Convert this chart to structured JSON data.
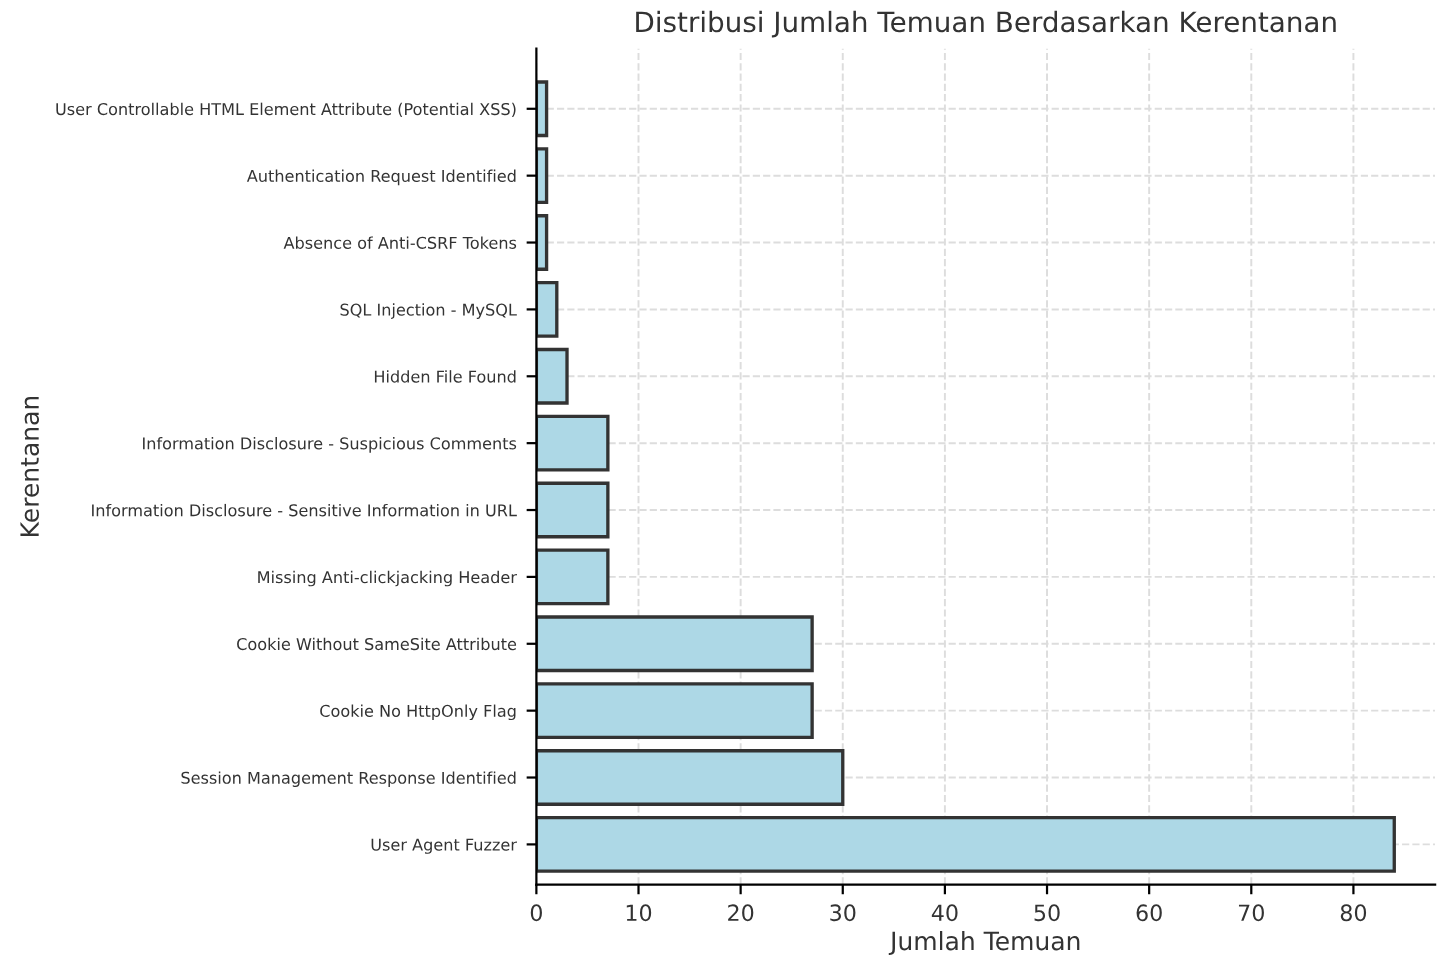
{
  "chart_data": {
    "type": "bar",
    "orientation": "horizontal",
    "title": "Distribusi Jumlah Temuan Berdasarkan Kerentanan",
    "xlabel": "Jumlah Temuan",
    "ylabel": "Kerentanan",
    "categories": [
      "User Controllable HTML Element Attribute (Potential XSS)",
      "Authentication Request Identified",
      "Absence of Anti-CSRF Tokens",
      "SQL Injection - MySQL",
      "Hidden File Found",
      "Information Disclosure - Suspicious Comments",
      "Information Disclosure - Sensitive Information in URL",
      "Missing Anti-clickjacking Header",
      "Cookie Without SameSite Attribute",
      "Cookie No HttpOnly Flag",
      "Session Management Response Identified",
      "User Agent Fuzzer"
    ],
    "values": [
      1,
      1,
      1,
      2,
      3,
      7,
      7,
      7,
      27,
      27,
      30,
      84
    ],
    "color": "#add8e6",
    "xlim": [
      0,
      88
    ],
    "xticks": [
      0,
      10,
      20,
      30,
      40,
      50,
      60,
      70,
      80
    ],
    "grid": true
  }
}
